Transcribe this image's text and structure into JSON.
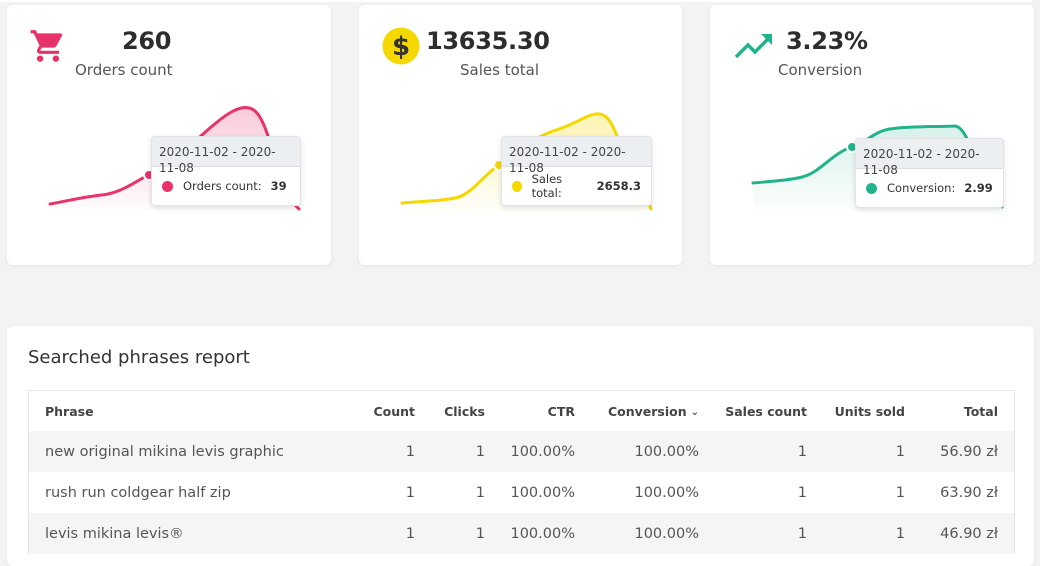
{
  "stats": [
    {
      "id": "orders",
      "value": "260",
      "caption": "Orders count",
      "icon": "cart-icon",
      "color": "#e8336a",
      "tooltip": {
        "range": "2020-11-02 - 2020-11-08",
        "label": "Orders count:",
        "value": "39"
      }
    },
    {
      "id": "sales",
      "value": "13635.30",
      "caption": "Sales total",
      "icon": "dollar-coin-icon",
      "color": "#f5d800",
      "tooltip": {
        "range": "2020-11-02 - 2020-11-08",
        "label": "Sales total:",
        "value": "2658.3"
      }
    },
    {
      "id": "conversion",
      "value": "3.23%",
      "caption": "Conversion",
      "icon": "trending-up-icon",
      "color": "#22b38d",
      "tooltip": {
        "range": "2020-11-02 - 2020-11-08",
        "label": "Conversion:",
        "value": "2.99"
      }
    }
  ],
  "report": {
    "title": "Searched phrases report",
    "columns": [
      "Phrase",
      "Count",
      "Clicks",
      "CTR",
      "Conversion",
      "Sales count",
      "Units sold",
      "Total"
    ],
    "sort_column": "Conversion",
    "rows": [
      [
        "new original mikina levis graphic",
        "1",
        "1",
        "100.00%",
        "100.00%",
        "1",
        "1",
        "56.90 zł"
      ],
      [
        "rush run coldgear half zip",
        "1",
        "1",
        "100.00%",
        "100.00%",
        "1",
        "1",
        "63.90 zł"
      ],
      [
        "levis mikina levis®",
        "1",
        "1",
        "100.00%",
        "100.00%",
        "1",
        "1",
        "46.90 zł"
      ]
    ]
  }
}
